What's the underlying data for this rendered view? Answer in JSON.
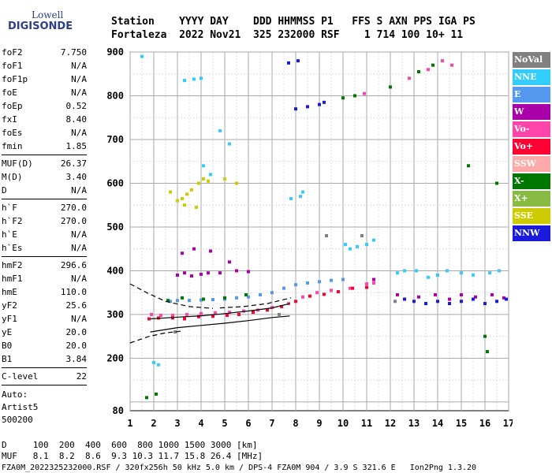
{
  "logo": {
    "line1": "Lowell",
    "line2": "DIGISONDE"
  },
  "header": {
    "line1": "Station    YYYY DAY    DDD HHMMSS P1   FFS S AXN PPS IGA PS",
    "line2": "Fortaleza  2022 Nov21  325 232000 RSF    1 714 100 10+ 11"
  },
  "params": [
    {
      "group": [
        {
          "k": "foF2",
          "v": "7.750"
        },
        {
          "k": "foF1",
          "v": "N/A"
        },
        {
          "k": "foF1p",
          "v": "N/A"
        },
        {
          "k": "foE",
          "v": "N/A"
        },
        {
          "k": "foEp",
          "v": "0.52"
        },
        {
          "k": "fxI",
          "v": "8.40"
        },
        {
          "k": "foEs",
          "v": "N/A"
        },
        {
          "k": "fmin",
          "v": "1.85"
        }
      ]
    },
    {
      "group": [
        {
          "k": "MUF(D)",
          "v": "26.37"
        },
        {
          "k": "M(D)",
          "v": "3.40"
        },
        {
          "k": "D",
          "v": "N/A"
        }
      ]
    },
    {
      "group": [
        {
          "k": "h`F",
          "v": "270.0"
        },
        {
          "k": "h`F2",
          "v": "270.0"
        },
        {
          "k": "h`E",
          "v": "N/A"
        },
        {
          "k": "h`Es",
          "v": "N/A"
        }
      ]
    },
    {
      "group": [
        {
          "k": "hmF2",
          "v": "296.6"
        },
        {
          "k": "hmF1",
          "v": "N/A"
        },
        {
          "k": "hmE",
          "v": "110.0"
        },
        {
          "k": "yF2",
          "v": "25.6"
        },
        {
          "k": "yF1",
          "v": "N/A"
        },
        {
          "k": "yE",
          "v": "20.0"
        },
        {
          "k": "B0",
          "v": "20.0"
        },
        {
          "k": "B1",
          "v": "3.84"
        }
      ]
    },
    {
      "group": [
        {
          "k": "C-level",
          "v": "22"
        }
      ]
    }
  ],
  "auto": [
    "Auto:",
    "Artist5",
    "500200"
  ],
  "legend": [
    {
      "label": "NoVal",
      "color": "#808080"
    },
    {
      "label": "NNE",
      "color": "#33ccff"
    },
    {
      "label": "E",
      "color": "#5599ee"
    },
    {
      "label": "W",
      "color": "#aa00aa"
    },
    {
      "label": "Vo-",
      "color": "#ff44aa"
    },
    {
      "label": "Vo+",
      "color": "#ff0033"
    },
    {
      "label": "SSW",
      "color": "#ffaaaa"
    },
    {
      "label": "X-",
      "color": "#007700"
    },
    {
      "label": "X+",
      "color": "#88bb44"
    },
    {
      "label": "SSE",
      "color": "#cccc00"
    },
    {
      "label": "NNW",
      "color": "#1a1add"
    }
  ],
  "bottom": {
    "d_line": "D     100  200  400  600  800 1000 1500 3000 [km]",
    "muf_line": "MUF   8.1  8.2  8.6  9.3 10.3 11.7 15.8 26.4 [MHz]",
    "footer": "FZA0M_2022325232000.RSF / 320fx256h 50 kHz 5.0 km / DPS-4 FZA0M 904 / 3.9 S 321.6 E   Ion2Png 1.3.20"
  },
  "chart_data": {
    "type": "scatter",
    "xlim": [
      1,
      17
    ],
    "ylim": [
      80,
      900
    ],
    "x_ticks": [
      "1",
      "2",
      "3",
      "4",
      "5",
      "6",
      "7",
      "8",
      "9",
      "10",
      "11",
      "12",
      "13",
      "14",
      "15",
      "16",
      "17"
    ],
    "y_ticks": [
      "80",
      "200",
      "300",
      "400",
      "500",
      "600",
      "700",
      "800",
      "900"
    ],
    "grid": true,
    "series": [
      {
        "name": "NNE",
        "color": "#33ccff",
        "points": [
          [
            1.5,
            890
          ],
          [
            2.0,
            190
          ],
          [
            2.2,
            185
          ],
          [
            3.3,
            835
          ],
          [
            3.7,
            838
          ],
          [
            4.0,
            840
          ],
          [
            4.1,
            640
          ],
          [
            4.4,
            620
          ],
          [
            4.8,
            720
          ],
          [
            5.2,
            690
          ],
          [
            7.8,
            565
          ],
          [
            8.2,
            570
          ],
          [
            8.3,
            580
          ],
          [
            10.1,
            460
          ],
          [
            10.3,
            450
          ],
          [
            10.6,
            455
          ],
          [
            11.0,
            460
          ],
          [
            11.3,
            470
          ],
          [
            12.3,
            395
          ],
          [
            12.6,
            400
          ],
          [
            13.1,
            400
          ],
          [
            13.6,
            385
          ],
          [
            14.0,
            390
          ],
          [
            14.4,
            400
          ],
          [
            15.0,
            395
          ],
          [
            15.5,
            390
          ],
          [
            16.2,
            395
          ],
          [
            16.6,
            400
          ]
        ]
      },
      {
        "name": "E",
        "color": "#5599ee",
        "points": [
          [
            2.7,
            330
          ],
          [
            3.0,
            332
          ],
          [
            3.5,
            332
          ],
          [
            4.0,
            333
          ],
          [
            4.5,
            334
          ],
          [
            5.0,
            335
          ],
          [
            5.5,
            338
          ],
          [
            6.0,
            340
          ],
          [
            6.5,
            345
          ],
          [
            7.0,
            350
          ],
          [
            7.5,
            360
          ],
          [
            8.0,
            368
          ],
          [
            8.5,
            372
          ],
          [
            9.0,
            375
          ],
          [
            9.5,
            378
          ],
          [
            10.0,
            380
          ]
        ]
      },
      {
        "name": "W",
        "color": "#aa00aa",
        "points": [
          [
            3.0,
            390
          ],
          [
            3.3,
            395
          ],
          [
            3.6,
            388
          ],
          [
            4.0,
            392
          ],
          [
            4.3,
            395
          ],
          [
            4.8,
            395
          ],
          [
            5.5,
            400
          ],
          [
            6.0,
            398
          ],
          [
            3.2,
            440
          ],
          [
            3.7,
            450
          ],
          [
            4.4,
            445
          ],
          [
            5.2,
            420
          ],
          [
            11.3,
            380
          ],
          [
            12.3,
            345
          ],
          [
            13.2,
            340
          ],
          [
            13.9,
            345
          ],
          [
            14.5,
            335
          ],
          [
            15.0,
            345
          ],
          [
            15.6,
            340
          ],
          [
            16.3,
            345
          ],
          [
            16.8,
            338
          ]
        ]
      },
      {
        "name": "Vo-",
        "color": "#ff44aa",
        "points": [
          [
            1.9,
            300
          ],
          [
            2.3,
            298
          ],
          [
            2.8,
            298
          ],
          [
            3.4,
            300
          ],
          [
            4.0,
            302
          ],
          [
            4.6,
            304
          ],
          [
            5.2,
            305
          ],
          [
            5.8,
            308
          ],
          [
            6.4,
            310
          ],
          [
            7.0,
            316
          ],
          [
            7.7,
            325
          ],
          [
            8.3,
            340
          ],
          [
            8.9,
            350
          ],
          [
            9.5,
            355
          ],
          [
            10.3,
            360
          ],
          [
            11.0,
            370
          ],
          [
            11.3,
            372
          ],
          [
            10.9,
            805
          ],
          [
            12.8,
            840
          ],
          [
            13.6,
            860
          ],
          [
            14.2,
            880
          ],
          [
            14.6,
            870
          ]
        ]
      },
      {
        "name": "Vo+",
        "color": "#ff0033",
        "points": [
          [
            1.8,
            290
          ],
          [
            2.2,
            292
          ],
          [
            2.8,
            292
          ],
          [
            3.3,
            290
          ],
          [
            3.9,
            295
          ],
          [
            4.5,
            296
          ],
          [
            5.1,
            298
          ],
          [
            5.6,
            300
          ],
          [
            6.2,
            305
          ],
          [
            6.8,
            310
          ],
          [
            7.4,
            318
          ],
          [
            8.0,
            330
          ],
          [
            8.6,
            342
          ],
          [
            9.2,
            346
          ],
          [
            9.8,
            352
          ],
          [
            10.4,
            360
          ],
          [
            11.0,
            362
          ]
        ]
      },
      {
        "name": "X-",
        "color": "#007700",
        "points": [
          [
            1.7,
            110
          ],
          [
            2.1,
            118
          ],
          [
            2.6,
            332
          ],
          [
            3.2,
            338
          ],
          [
            4.1,
            335
          ],
          [
            5.0,
            338
          ],
          [
            5.9,
            345
          ],
          [
            10.0,
            795
          ],
          [
            10.5,
            800
          ],
          [
            12.0,
            820
          ],
          [
            13.2,
            855
          ],
          [
            13.8,
            870
          ],
          [
            15.3,
            640
          ],
          [
            16.0,
            250
          ],
          [
            16.1,
            215
          ],
          [
            16.5,
            600
          ]
        ]
      },
      {
        "name": "SSE",
        "color": "#cccc00",
        "points": [
          [
            3.0,
            560
          ],
          [
            3.2,
            565
          ],
          [
            3.4,
            575
          ],
          [
            3.6,
            585
          ],
          [
            3.9,
            600
          ],
          [
            4.1,
            610
          ],
          [
            4.3,
            605
          ],
          [
            3.3,
            550
          ],
          [
            3.8,
            545
          ],
          [
            5.0,
            610
          ],
          [
            5.5,
            600
          ],
          [
            2.7,
            580
          ]
        ]
      },
      {
        "name": "NNW",
        "color": "#1a1add",
        "points": [
          [
            7.7,
            875
          ],
          [
            8.1,
            880
          ],
          [
            8.0,
            770
          ],
          [
            8.5,
            775
          ],
          [
            9.0,
            780
          ],
          [
            9.2,
            785
          ],
          [
            12.6,
            335
          ],
          [
            13.0,
            330
          ],
          [
            13.5,
            325
          ],
          [
            14.0,
            330
          ],
          [
            14.5,
            325
          ],
          [
            15.0,
            330
          ],
          [
            15.5,
            335
          ],
          [
            16.0,
            325
          ],
          [
            16.5,
            330
          ],
          [
            16.9,
            335
          ]
        ]
      },
      {
        "name": "NoVal",
        "color": "#808080",
        "points": [
          [
            2.9,
            260
          ],
          [
            7.3,
            300
          ],
          [
            9.3,
            480
          ],
          [
            10.8,
            480
          ],
          [
            12.2,
            330
          ]
        ]
      }
    ],
    "fit_curves": [
      {
        "style": "solid",
        "points": [
          [
            1.85,
            260
          ],
          [
            3,
            270
          ],
          [
            4,
            275
          ],
          [
            5,
            280
          ],
          [
            6,
            286
          ],
          [
            7,
            293
          ],
          [
            7.75,
            296.6
          ]
        ]
      },
      {
        "style": "solid",
        "points": [
          [
            1.85,
            290
          ],
          [
            3,
            294
          ],
          [
            4,
            297
          ],
          [
            5,
            302
          ],
          [
            6,
            308
          ],
          [
            7,
            315
          ],
          [
            7.75,
            325
          ]
        ]
      },
      {
        "style": "dashed",
        "points": [
          [
            1.0,
            370
          ],
          [
            1.7,
            350
          ],
          [
            2.5,
            330
          ],
          [
            3.5,
            318
          ],
          [
            4.5,
            314
          ]
        ]
      },
      {
        "style": "dashed",
        "points": [
          [
            1.0,
            235
          ],
          [
            1.8,
            250
          ],
          [
            2.5,
            258
          ],
          [
            3.2,
            262
          ]
        ]
      },
      {
        "style": "dashed",
        "points": [
          [
            4.8,
            315
          ],
          [
            5.8,
            318
          ],
          [
            6.8,
            325
          ],
          [
            7.8,
            338
          ]
        ]
      }
    ]
  }
}
